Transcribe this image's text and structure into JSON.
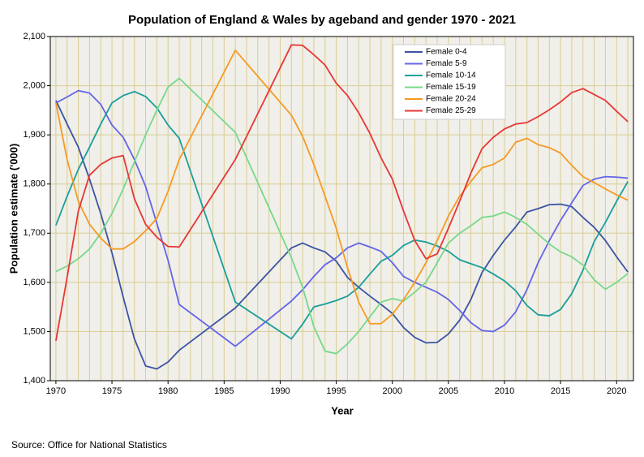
{
  "chart_data": {
    "type": "line",
    "title": "Population of England & Wales by ageband and gender 1970 - 2021",
    "x_label": "Year",
    "y_label": "Population estimate ('000)",
    "source": "Source: Office for National Statistics",
    "x": [
      1970,
      1971,
      1972,
      1973,
      1974,
      1975,
      1976,
      1977,
      1978,
      1979,
      1980,
      1981,
      1986,
      1991,
      1992,
      1993,
      1994,
      1995,
      1996,
      1997,
      1998,
      1999,
      2000,
      2001,
      2002,
      2003,
      2004,
      2005,
      2006,
      2007,
      2008,
      2009,
      2010,
      2011,
      2012,
      2013,
      2014,
      2015,
      2016,
      2017,
      2018,
      2019,
      2020,
      2021
    ],
    "series": [
      {
        "name": "Female 0-4",
        "color": "#3b54a3",
        "values": [
          1970,
          1922,
          1875,
          1810,
          1740,
          1660,
          1570,
          1485,
          1430,
          1424,
          1438,
          1462,
          1548,
          1670,
          1680,
          1670,
          1662,
          1643,
          1610,
          1590,
          1572,
          1555,
          1537,
          1508,
          1488,
          1477,
          1478,
          1495,
          1523,
          1565,
          1620,
          1655,
          1686,
          1713,
          1743,
          1750,
          1758,
          1759,
          1754,
          1732,
          1712,
          1685,
          1652,
          1621
        ]
      },
      {
        "name": "Female 5-9",
        "color": "#6464e8",
        "values": [
          1965,
          1977,
          1990,
          1985,
          1962,
          1920,
          1895,
          1850,
          1795,
          1720,
          1645,
          1555,
          1470,
          1562,
          1585,
          1612,
          1636,
          1650,
          1670,
          1680,
          1672,
          1663,
          1640,
          1612,
          1600,
          1590,
          1580,
          1565,
          1543,
          1518,
          1502,
          1500,
          1513,
          1540,
          1585,
          1640,
          1685,
          1726,
          1762,
          1797,
          1810,
          1815,
          1814,
          1812
        ]
      },
      {
        "name": "Female 10-14",
        "color": "#1a9e9a",
        "values": [
          1716,
          1775,
          1830,
          1875,
          1922,
          1965,
          1980,
          1988,
          1978,
          1955,
          1920,
          1893,
          1560,
          1485,
          1515,
          1550,
          1556,
          1563,
          1572,
          1590,
          1617,
          1643,
          1655,
          1675,
          1686,
          1682,
          1674,
          1663,
          1646,
          1638,
          1630,
          1617,
          1603,
          1583,
          1553,
          1534,
          1532,
          1545,
          1577,
          1625,
          1683,
          1722,
          1765,
          1805
        ]
      },
      {
        "name": "Female 15-19",
        "color": "#78d88a",
        "values": [
          1622,
          1633,
          1648,
          1668,
          1700,
          1740,
          1790,
          1845,
          1900,
          1950,
          1997,
          2015,
          1905,
          1650,
          1590,
          1510,
          1460,
          1455,
          1475,
          1500,
          1530,
          1560,
          1567,
          1562,
          1580,
          1600,
          1640,
          1680,
          1700,
          1715,
          1732,
          1735,
          1743,
          1732,
          1718,
          1698,
          1678,
          1662,
          1652,
          1635,
          1605,
          1586,
          1600,
          1618
        ]
      },
      {
        "name": "Female 20-24",
        "color": "#f59a24",
        "values": [
          1965,
          1850,
          1765,
          1718,
          1690,
          1668,
          1668,
          1683,
          1705,
          1730,
          1785,
          1850,
          2072,
          1940,
          1897,
          1840,
          1775,
          1710,
          1630,
          1560,
          1516,
          1516,
          1535,
          1565,
          1600,
          1640,
          1685,
          1735,
          1775,
          1805,
          1833,
          1840,
          1853,
          1885,
          1893,
          1880,
          1874,
          1863,
          1838,
          1815,
          1803,
          1790,
          1778,
          1767
        ]
      },
      {
        "name": "Female 25-29",
        "color": "#e83636",
        "values": [
          1481,
          1610,
          1745,
          1818,
          1840,
          1853,
          1858,
          1770,
          1718,
          1692,
          1673,
          1672,
          1850,
          2083,
          2082,
          2063,
          2042,
          2005,
          1980,
          1945,
          1903,
          1853,
          1810,
          1745,
          1685,
          1648,
          1658,
          1710,
          1765,
          1822,
          1872,
          1895,
          1912,
          1922,
          1925,
          1937,
          1951,
          1967,
          1986,
          1994,
          1982,
          1970,
          1948,
          1927
        ]
      }
    ],
    "xlim": [
      1969.5,
      2021.5
    ],
    "xticks": [
      1970,
      1975,
      1980,
      1985,
      1990,
      1995,
      2000,
      2005,
      2010,
      2015,
      2020
    ],
    "x_grid_step": 1,
    "ylim": [
      1400,
      2100
    ],
    "yticks": [
      {
        "value": 1400,
        "label": "1,400"
      },
      {
        "value": 1500,
        "label": "1,500"
      },
      {
        "value": 1600,
        "label": "1,600"
      },
      {
        "value": 1700,
        "label": "1,700"
      },
      {
        "value": 1800,
        "label": "1,800"
      },
      {
        "value": 1900,
        "label": "1,900"
      },
      {
        "value": 2000,
        "label": "2,000"
      },
      {
        "value": 2100,
        "label": "2,100"
      }
    ],
    "grid": true,
    "legend": "upper right"
  }
}
